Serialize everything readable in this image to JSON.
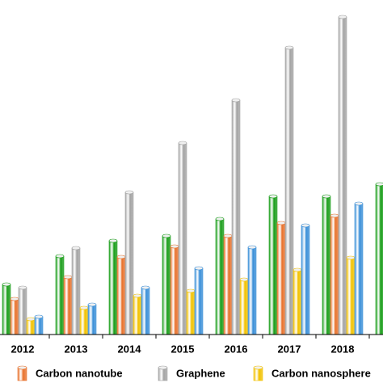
{
  "chart_data": {
    "type": "bar",
    "categories": [
      "2012",
      "2013",
      "2014",
      "2015",
      "2016",
      "2017",
      "2018",
      null
    ],
    "series": [
      {
        "color": "#1a9e1a",
        "values": [
          62,
          97,
          116,
          122,
          143,
          171,
          171,
          186
        ]
      },
      {
        "name": "Carbon nanotube",
        "color": "#e8722c",
        "values": [
          44,
          71,
          96,
          109,
          122,
          138,
          147,
          null
        ]
      },
      {
        "name": "Graphene",
        "color": "#a3a3a3",
        "values": [
          58,
          107,
          176,
          237,
          290,
          355,
          393,
          null
        ]
      },
      {
        "name": "Carbon nanosphere",
        "color": "#f2c200",
        "values": [
          19,
          33,
          48,
          54,
          68,
          80,
          95,
          null
        ]
      },
      {
        "color": "#3a8fd8",
        "values": [
          22,
          37,
          58,
          82,
          108,
          135,
          162,
          null
        ]
      }
    ],
    "ylim": [
      0,
      414
    ]
  }
}
